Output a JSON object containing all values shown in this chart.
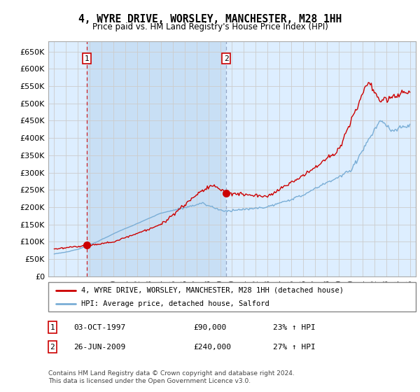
{
  "title": "4, WYRE DRIVE, WORSLEY, MANCHESTER, M28 1HH",
  "subtitle": "Price paid vs. HM Land Registry's House Price Index (HPI)",
  "legend_line1": "4, WYRE DRIVE, WORSLEY, MANCHESTER, M28 1HH (detached house)",
  "legend_line2": "HPI: Average price, detached house, Salford",
  "transaction1_date": "03-OCT-1997",
  "transaction1_price": "£90,000",
  "transaction1_hpi": "23% ↑ HPI",
  "transaction2_date": "26-JUN-2009",
  "transaction2_price": "£240,000",
  "transaction2_hpi": "27% ↑ HPI",
  "footer": "Contains HM Land Registry data © Crown copyright and database right 2024.\nThis data is licensed under the Open Government Licence v3.0.",
  "red_color": "#cc0000",
  "blue_color": "#7aaed6",
  "bg_color": "#ddeeff",
  "bg_color2": "#c8dff5",
  "grid_color": "#cccccc",
  "marker1_x": 1997.75,
  "marker1_y": 90000,
  "marker2_x": 2009.5,
  "marker2_y": 240000,
  "xmin": 1994.5,
  "xmax": 2025.5,
  "ymin": 0,
  "ymax": 680000,
  "yticks": [
    0,
    50000,
    100000,
    150000,
    200000,
    250000,
    300000,
    350000,
    400000,
    450000,
    500000,
    550000,
    600000,
    650000
  ]
}
